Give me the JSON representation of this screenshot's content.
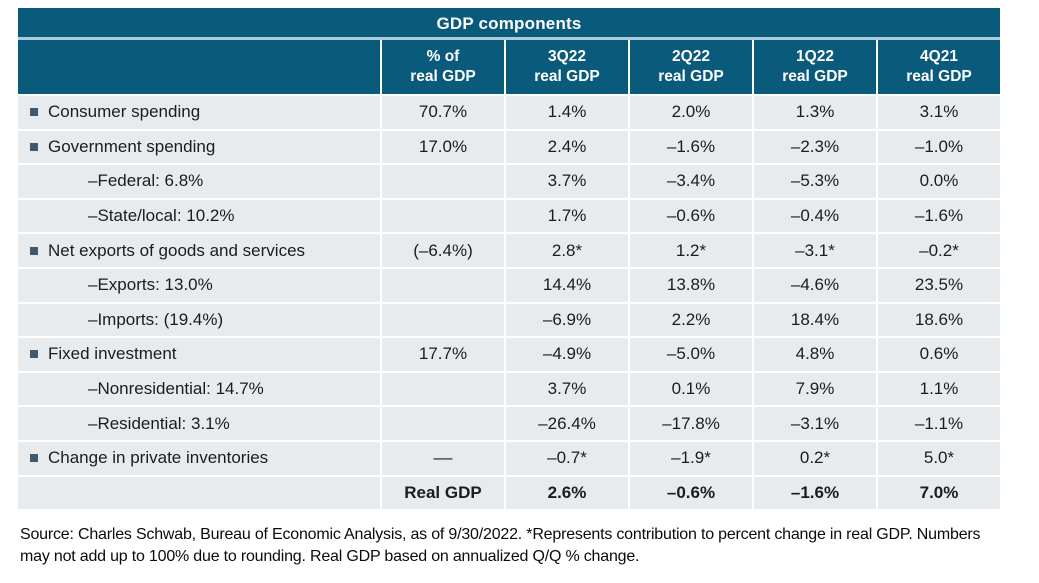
{
  "chart_data": {
    "type": "table",
    "title": "GDP components",
    "columns": [
      "% of\nreal GDP",
      "3Q22\nreal GDP",
      "2Q22\nreal GDP",
      "1Q22\nreal GDP",
      "4Q21\nreal GDP"
    ],
    "rows": [
      {
        "label": "Consumer spending",
        "style": "bullet",
        "cells": [
          "70.7%",
          "1.4%",
          "2.0%",
          "1.3%",
          "3.1%"
        ]
      },
      {
        "label": "Government spending",
        "style": "bullet",
        "cells": [
          "17.0%",
          "2.4%",
          "–1.6%",
          "–2.3%",
          "–1.0%"
        ]
      },
      {
        "label": "–Federal: 6.8%",
        "style": "indent",
        "cells": [
          "",
          "3.7%",
          "–3.4%",
          "–5.3%",
          "0.0%"
        ]
      },
      {
        "label": "–State/local: 10.2%",
        "style": "indent",
        "cells": [
          "",
          "1.7%",
          "–0.6%",
          "–0.4%",
          "–1.6%"
        ]
      },
      {
        "label": "Net exports of goods and services",
        "style": "bullet",
        "cells": [
          "(–6.4%)",
          "2.8*",
          "1.2*",
          "–3.1*",
          "–0.2*"
        ]
      },
      {
        "label": "–Exports: 13.0%",
        "style": "indent",
        "cells": [
          "",
          "14.4%",
          "13.8%",
          "–4.6%",
          "23.5%"
        ]
      },
      {
        "label": "–Imports: (19.4%)",
        "style": "indent",
        "cells": [
          "",
          "–6.9%",
          "2.2%",
          "18.4%",
          "18.6%"
        ]
      },
      {
        "label": "Fixed investment",
        "style": "bullet",
        "cells": [
          "17.7%",
          "–4.9%",
          "–5.0%",
          "4.8%",
          "0.6%"
        ]
      },
      {
        "label": "–Nonresidential: 14.7%",
        "style": "indent",
        "cells": [
          "",
          "3.7%",
          "0.1%",
          "7.9%",
          "1.1%"
        ]
      },
      {
        "label": "–Residential: 3.1%",
        "style": "indent",
        "cells": [
          "",
          "–26.4%",
          "–17.8%",
          "–3.1%",
          "–1.1%"
        ]
      },
      {
        "label": "Change in private inventories",
        "style": "bullet",
        "cells": [
          "––",
          "–0.7*",
          "–1.9*",
          "0.2*",
          "5.0*"
        ]
      },
      {
        "label": "",
        "style": "total",
        "cells": [
          "Real GDP",
          "2.6%",
          "–0.6%",
          "–1.6%",
          "7.0%"
        ]
      }
    ]
  },
  "footnote": "Source: Charles Schwab, Bureau of Economic Analysis, as of 9/30/2022. *Represents contribution to percent change in real GDP. Numbers may not add up to 100% due to rounding. Real GDP based on annualized Q/Q % change.",
  "colors": {
    "header_bg": "#0A5A7C",
    "header_divider": "#A9CBDC",
    "row_bg": "#E8EBEE",
    "bullet_square": "#3E5A6B",
    "text": "#1A1C1E"
  }
}
